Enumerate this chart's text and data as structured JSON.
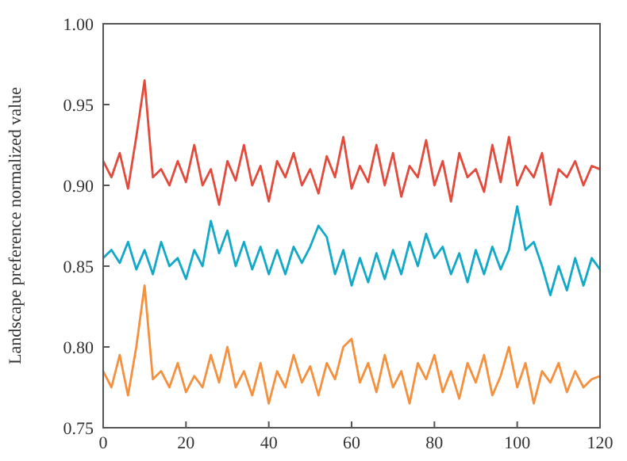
{
  "chart_data": {
    "type": "line",
    "ylabel": "Landscape preference normalized value",
    "x": [
      0,
      2,
      4,
      6,
      8,
      10,
      12,
      14,
      16,
      18,
      20,
      22,
      24,
      26,
      28,
      30,
      32,
      34,
      36,
      38,
      40,
      42,
      44,
      46,
      48,
      50,
      52,
      54,
      56,
      58,
      60,
      62,
      64,
      66,
      68,
      70,
      72,
      74,
      76,
      78,
      80,
      82,
      84,
      86,
      88,
      90,
      92,
      94,
      96,
      98,
      100,
      102,
      104,
      106,
      108,
      110,
      112,
      114,
      116,
      118,
      120
    ],
    "series": [
      {
        "color": "#e34a3c",
        "values": [
          0.915,
          0.905,
          0.92,
          0.898,
          0.93,
          0.965,
          0.905,
          0.91,
          0.9,
          0.915,
          0.902,
          0.925,
          0.9,
          0.91,
          0.888,
          0.915,
          0.903,
          0.925,
          0.9,
          0.912,
          0.89,
          0.915,
          0.905,
          0.92,
          0.9,
          0.91,
          0.895,
          0.918,
          0.905,
          0.93,
          0.898,
          0.912,
          0.902,
          0.925,
          0.9,
          0.92,
          0.893,
          0.912,
          0.905,
          0.928,
          0.9,
          0.915,
          0.89,
          0.92,
          0.905,
          0.91,
          0.896,
          0.925,
          0.902,
          0.93,
          0.9,
          0.912,
          0.905,
          0.92,
          0.888,
          0.91,
          0.905,
          0.915,
          0.9,
          0.912,
          0.91
        ]
      },
      {
        "color": "#12a9c9",
        "values": [
          0.855,
          0.86,
          0.852,
          0.865,
          0.848,
          0.86,
          0.845,
          0.865,
          0.85,
          0.855,
          0.842,
          0.86,
          0.85,
          0.878,
          0.858,
          0.872,
          0.85,
          0.865,
          0.848,
          0.862,
          0.845,
          0.86,
          0.845,
          0.862,
          0.852,
          0.862,
          0.875,
          0.868,
          0.845,
          0.86,
          0.838,
          0.855,
          0.84,
          0.858,
          0.842,
          0.86,
          0.845,
          0.865,
          0.85,
          0.87,
          0.855,
          0.862,
          0.845,
          0.858,
          0.84,
          0.86,
          0.845,
          0.862,
          0.848,
          0.86,
          0.887,
          0.86,
          0.865,
          0.85,
          0.832,
          0.85,
          0.835,
          0.855,
          0.838,
          0.855,
          0.848
        ]
      },
      {
        "color": "#f5903e",
        "values": [
          0.785,
          0.775,
          0.795,
          0.77,
          0.8,
          0.838,
          0.78,
          0.785,
          0.775,
          0.79,
          0.772,
          0.782,
          0.775,
          0.795,
          0.778,
          0.8,
          0.775,
          0.785,
          0.77,
          0.79,
          0.765,
          0.785,
          0.775,
          0.795,
          0.778,
          0.788,
          0.77,
          0.79,
          0.78,
          0.8,
          0.805,
          0.778,
          0.79,
          0.772,
          0.795,
          0.775,
          0.785,
          0.765,
          0.79,
          0.78,
          0.795,
          0.772,
          0.785,
          0.768,
          0.79,
          0.778,
          0.795,
          0.77,
          0.782,
          0.8,
          0.775,
          0.79,
          0.765,
          0.785,
          0.778,
          0.79,
          0.772,
          0.785,
          0.775,
          0.78,
          0.782
        ]
      }
    ],
    "xlim": [
      0,
      120
    ],
    "xticks": [
      0,
      20,
      40,
      60,
      80,
      100,
      120
    ],
    "ylim": [
      0.75,
      1.0
    ],
    "yticks": [
      {
        "value": 0.75,
        "label": "0.75"
      },
      {
        "value": 0.8,
        "label": "0.80"
      },
      {
        "value": 0.85,
        "label": "0.85"
      },
      {
        "value": 0.9,
        "label": "0.90"
      },
      {
        "value": 0.95,
        "label": "0.95"
      },
      {
        "value": 1.0,
        "label": "1.00"
      }
    ],
    "grid": false,
    "line_style": "solid"
  }
}
